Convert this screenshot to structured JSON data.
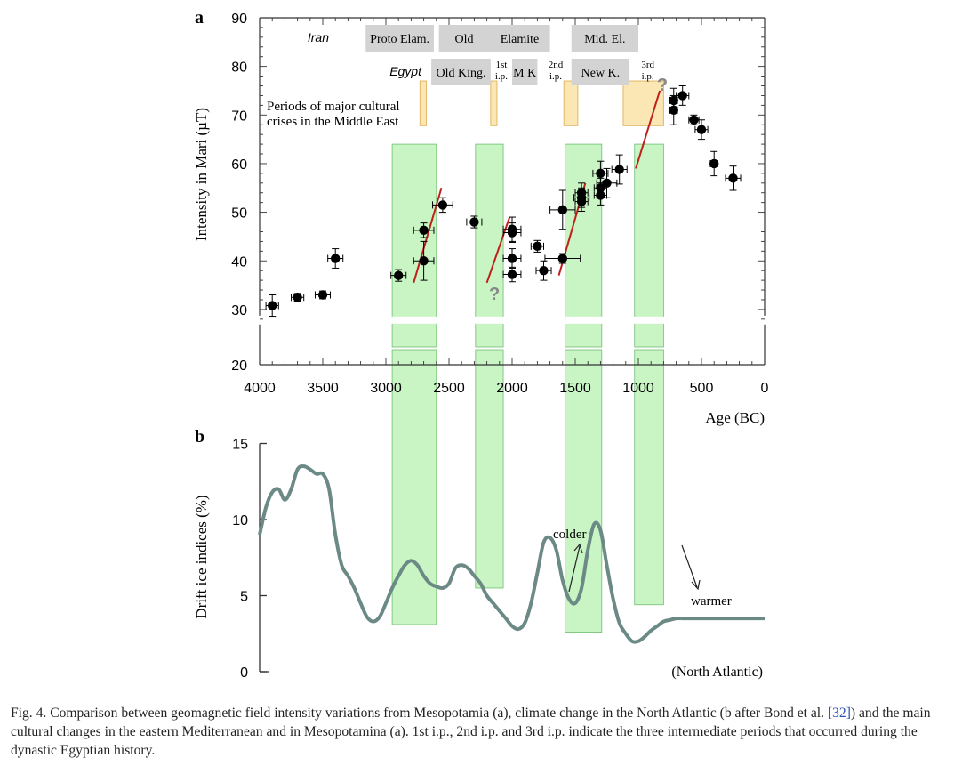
{
  "panel_labels": {
    "a": "a",
    "b": "b"
  },
  "colors": {
    "marker": "#000000",
    "crisis_fill": "#fbe7b4",
    "crisis_stroke": "#e3b765",
    "green_fill": "#b7f0b0",
    "green_stroke": "#6fbf6f",
    "period_box": "#d3d3d3",
    "trend_line": "#c0201a",
    "drift_curve": "#6c8a85",
    "question": "#888888"
  },
  "chart_data": [
    {
      "type": "scatter",
      "panel": "a",
      "ylabel": "Intensity in Mari (µT)",
      "xlabel": "Age (BC)",
      "xlim": [
        4000,
        0
      ],
      "ylim": [
        20,
        90
      ],
      "axis_break": [
        20,
        28
      ],
      "xticks": [
        4000,
        3500,
        3000,
        2500,
        2000,
        1500,
        1000,
        500,
        0
      ],
      "yticks": [
        20,
        30,
        40,
        50,
        60,
        70,
        80,
        90
      ],
      "points": [
        {
          "x": 3900,
          "y": 30.8,
          "xerr": 50,
          "yerr": 2.2
        },
        {
          "x": 3700,
          "y": 32.5,
          "xerr": 50,
          "yerr": 0.8
        },
        {
          "x": 3500,
          "y": 33,
          "xerr": 60,
          "yerr": 0.8
        },
        {
          "x": 3400,
          "y": 40.5,
          "xerr": 60,
          "yerr": 2.0
        },
        {
          "x": 2900,
          "y": 37,
          "xerr": 60,
          "yerr": 1.2
        },
        {
          "x": 2700,
          "y": 40,
          "xerr": 80,
          "yerr": 4.0
        },
        {
          "x": 2700,
          "y": 46.3,
          "xerr": 80,
          "yerr": 1.5
        },
        {
          "x": 2550,
          "y": 51.5,
          "xerr": 80,
          "yerr": 1.5
        },
        {
          "x": 2300,
          "y": 48,
          "xerr": 60,
          "yerr": 1.2
        },
        {
          "x": 2000,
          "y": 46.5,
          "xerr": 70,
          "yerr": 2.5
        },
        {
          "x": 2000,
          "y": 45.8,
          "xerr": 70,
          "yerr": 2.0
        },
        {
          "x": 2000,
          "y": 40.5,
          "xerr": 70,
          "yerr": 2.0
        },
        {
          "x": 2000,
          "y": 37.2,
          "xerr": 70,
          "yerr": 1.5
        },
        {
          "x": 1800,
          "y": 43,
          "xerr": 50,
          "yerr": 1.2
        },
        {
          "x": 1750,
          "y": 38,
          "xerr": 60,
          "yerr": 2.0
        },
        {
          "x": 1600,
          "y": 50.5,
          "xerr": 100,
          "yerr": 4.0
        },
        {
          "x": 1600,
          "y": 40.5,
          "xerr": 140,
          "yerr": 1.0
        },
        {
          "x": 1450,
          "y": 52.2,
          "xerr": 50,
          "yerr": 2.0
        },
        {
          "x": 1450,
          "y": 53,
          "xerr": 60,
          "yerr": 2.0
        },
        {
          "x": 1450,
          "y": 54,
          "xerr": 50,
          "yerr": 2.0
        },
        {
          "x": 1300,
          "y": 53.5,
          "xerr": 50,
          "yerr": 2.0
        },
        {
          "x": 1300,
          "y": 55,
          "xerr": 50,
          "yerr": 2.0
        },
        {
          "x": 1300,
          "y": 58,
          "xerr": 60,
          "yerr": 2.5
        },
        {
          "x": 1250,
          "y": 56,
          "xerr": 80,
          "yerr": 3.0
        },
        {
          "x": 1150,
          "y": 58.8,
          "xerr": 60,
          "yerr": 3.0
        },
        {
          "x": 720,
          "y": 71,
          "xerr": 30,
          "yerr": 3.0
        },
        {
          "x": 720,
          "y": 73,
          "xerr": 30,
          "yerr": 2.5
        },
        {
          "x": 650,
          "y": 74,
          "xerr": 50,
          "yerr": 2.0
        },
        {
          "x": 560,
          "y": 69,
          "xerr": 40,
          "yerr": 1.0
        },
        {
          "x": 500,
          "y": 67,
          "xerr": 50,
          "yerr": 2.0
        },
        {
          "x": 400,
          "y": 60,
          "xerr": 30,
          "yerr": 2.5
        },
        {
          "x": 250,
          "y": 57,
          "xerr": 60,
          "yerr": 2.5
        }
      ],
      "trend_lines": [
        {
          "x1": 2780,
          "y1": 35.5,
          "x2": 2560,
          "y2": 55
        },
        {
          "x1": 2200,
          "y1": 35.5,
          "x2": 2020,
          "y2": 49
        },
        {
          "x1": 1630,
          "y1": 37,
          "x2": 1420,
          "y2": 56
        },
        {
          "x1": 1020,
          "y1": 59,
          "x2": 830,
          "y2": 75
        }
      ],
      "question_marks": [
        {
          "x": 2140,
          "y": 33.5,
          "text": "?"
        },
        {
          "x": 810,
          "y": 76.5,
          "text": "?"
        }
      ],
      "green_bands": [
        [
          2950,
          2600
        ],
        [
          2290,
          2070
        ],
        [
          1580,
          1290
        ],
        [
          1030,
          800
        ]
      ],
      "crisis_periods": [
        [
          2730,
          2680
        ],
        [
          2170,
          2120
        ],
        [
          1590,
          1480
        ],
        [
          1120,
          800
        ]
      ],
      "crisis_label": [
        "Periods of major cultural",
        "crises in the Middle East"
      ],
      "iran_row": {
        "label": "Iran",
        "periods": [
          {
            "label": "Proto Elam.",
            "x0": 3160,
            "x1": 2620
          },
          {
            "label": "Old",
            "x0": 2580,
            "x1": 2180
          },
          {
            "label": "Elamite",
            "x0": 2180,
            "x1": 1700
          },
          {
            "label": "Mid. El.",
            "x0": 1530,
            "x1": 1000
          }
        ]
      },
      "egypt_row": {
        "label": "Egypt",
        "periods": [
          {
            "label": "Old King.",
            "x0": 2640,
            "x1": 2170
          },
          {
            "label": "1st i.p.",
            "x0": 2170,
            "x1": 2000,
            "plain": true
          },
          {
            "label": "M K",
            "x0": 2000,
            "x1": 1800
          },
          {
            "label": "2nd i.p.",
            "x0": 1770,
            "x1": 1540,
            "plain": true
          },
          {
            "label": "New K.",
            "x0": 1530,
            "x1": 1070
          },
          {
            "label": "3rd i.p.",
            "x0": 1050,
            "x1": 800,
            "plain": true
          }
        ]
      }
    },
    {
      "type": "line",
      "panel": "b",
      "ylabel": "Drift ice indices (%)",
      "ylim": [
        0,
        15
      ],
      "yticks": [
        0,
        5,
        10,
        15
      ],
      "xlim": [
        4000,
        0
      ],
      "note": "(North Atlantic)",
      "series": [
        {
          "x": [
            4000,
            3950,
            3900,
            3850,
            3800,
            3750,
            3700,
            3650,
            3600,
            3550,
            3500,
            3450,
            3400,
            3350,
            3300,
            3250,
            3200,
            3150,
            3100,
            3050,
            3000,
            2950,
            2900,
            2850,
            2800,
            2750,
            2700,
            2650,
            2600,
            2550,
            2500,
            2450,
            2400,
            2350,
            2300,
            2250,
            2200,
            2150,
            2100,
            2050,
            2000,
            1950,
            1900,
            1850,
            1800,
            1750,
            1700,
            1650,
            1600,
            1550,
            1500,
            1450,
            1400,
            1350,
            1300,
            1250,
            1200,
            1150,
            1100,
            1050,
            1000,
            950,
            900,
            850,
            800,
            750,
            700,
            650,
            600,
            550,
            500,
            450,
            400,
            350,
            300,
            250,
            200,
            150,
            100,
            50,
            0
          ],
          "y": [
            9.0,
            10.8,
            11.8,
            12.0,
            11.3,
            12.0,
            13.3,
            13.5,
            13.3,
            13.0,
            13.0,
            12.0,
            9.0,
            7.0,
            6.3,
            5.5,
            4.5,
            3.6,
            3.3,
            3.6,
            4.5,
            5.5,
            6.3,
            7.0,
            7.3,
            7.0,
            6.3,
            5.8,
            5.6,
            5.5,
            5.8,
            6.8,
            7.0,
            6.8,
            6.3,
            5.8,
            5.0,
            4.5,
            4.0,
            3.5,
            3.0,
            2.8,
            3.2,
            4.5,
            6.5,
            8.5,
            8.8,
            8.0,
            6.0,
            4.8,
            4.5,
            5.5,
            8.0,
            9.7,
            9.3,
            7.0,
            4.8,
            3.2,
            2.5,
            2.0,
            2.0,
            2.3,
            2.7,
            3.0,
            3.3,
            3.4,
            3.5,
            3.5,
            3.5,
            3.5,
            3.5,
            3.5,
            3.5,
            3.5,
            3.5,
            3.5,
            3.5,
            3.5,
            3.5,
            3.5,
            3.5
          ]
        }
      ],
      "green_band_tops": [
        3.1,
        5.5,
        2.6,
        4.4
      ],
      "annotations": [
        {
          "text": "colder",
          "direction": "up"
        },
        {
          "text": "warmer",
          "direction": "down"
        }
      ]
    }
  ],
  "caption": {
    "part1": "Fig. 4. Comparison between geomagnetic field intensity variations from Mesopotamia (a), climate change in the North Atlantic (b after Bond et al.",
    "ref": "[32]",
    "part2": ") and the main cultural changes in the eastern Mediterranean and in Mesopotamina (a). 1st i.p., 2nd i.p. and 3rd i.p. indicate the three intermediate periods that occurred during the dynastic Egyptian history."
  }
}
